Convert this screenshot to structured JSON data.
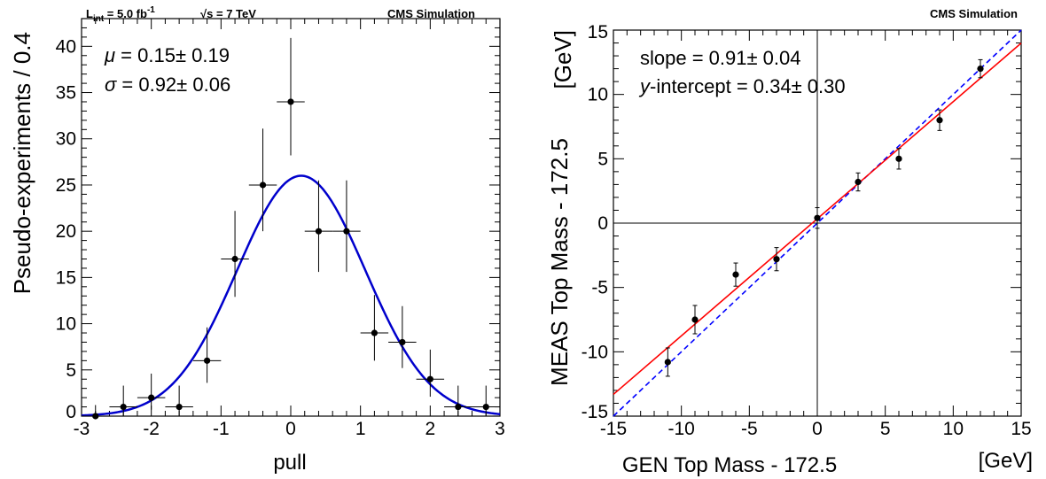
{
  "chart_data": [
    {
      "type": "histogram-with-fit",
      "header": {
        "lumi_prefix": "L",
        "lumi_sub": "int",
        "lumi_value": " = 5.0 fb",
        "lumi_sup": "-1",
        "energy_root": "√s",
        "energy_value": " = 7 TeV",
        "experiment": "CMS  Simulation"
      },
      "xlabel": "pull",
      "ylabel": "Pseudo-experiments / 0.4",
      "xlim": [
        -3,
        3
      ],
      "ylim": [
        0,
        43
      ],
      "xticks": [
        -3,
        -2,
        -1,
        0,
        1,
        2,
        3
      ],
      "yticks": [
        0,
        5,
        10,
        15,
        20,
        25,
        30,
        35,
        40
      ],
      "annotations": [
        {
          "symbol": "μ",
          "text": " = 0.15± 0.19"
        },
        {
          "symbol": "σ",
          "text": " = 0.92± 0.06"
        }
      ],
      "bin_half_width": 0.2,
      "points": [
        {
          "x": -2.8,
          "y": 0,
          "yerr": [
            0,
            1.2
          ]
        },
        {
          "x": -2.4,
          "y": 1,
          "yerr": [
            1,
            2.3
          ]
        },
        {
          "x": -2.0,
          "y": 2,
          "yerr": [
            1.3,
            2.6
          ]
        },
        {
          "x": -1.6,
          "y": 1,
          "yerr": [
            1,
            2.3
          ]
        },
        {
          "x": -1.2,
          "y": 6,
          "yerr": [
            2.4,
            3.6
          ]
        },
        {
          "x": -0.8,
          "y": 17,
          "yerr": [
            4.1,
            5.2
          ]
        },
        {
          "x": -0.4,
          "y": 25,
          "yerr": [
            5.0,
            6.1
          ]
        },
        {
          "x": 0.0,
          "y": 34,
          "yerr": [
            5.8,
            6.9
          ]
        },
        {
          "x": 0.4,
          "y": 20,
          "yerr": [
            4.4,
            5.5
          ]
        },
        {
          "x": 0.8,
          "y": 20,
          "yerr": [
            4.4,
            5.5
          ]
        },
        {
          "x": 1.2,
          "y": 9,
          "yerr": [
            3.0,
            4.1
          ]
        },
        {
          "x": 1.6,
          "y": 8,
          "yerr": [
            2.8,
            3.9
          ]
        },
        {
          "x": 2.0,
          "y": 4,
          "yerr": [
            1.9,
            3.2
          ]
        },
        {
          "x": 2.4,
          "y": 1,
          "yerr": [
            1,
            2.3
          ]
        },
        {
          "x": 2.8,
          "y": 1,
          "yerr": [
            1,
            2.3
          ]
        }
      ],
      "fit": {
        "function": "gaussian",
        "amplitude": 26,
        "mean": 0.15,
        "sigma": 0.92,
        "color": "#0000cc"
      }
    },
    {
      "type": "scatter-with-fit",
      "header": {
        "experiment": "CMS Simulation"
      },
      "xlabel": "GEN Top Mass - 172.5",
      "xunit": "[GeV]",
      "ylabel": "MEAS Top Mass - 172.5",
      "yunit": "[GeV]",
      "xlim": [
        -15,
        15
      ],
      "ylim": [
        -15,
        15
      ],
      "xticks": [
        -15,
        -10,
        -5,
        0,
        5,
        10,
        15
      ],
      "yticks": [
        -15,
        -10,
        -5,
        0,
        5,
        10,
        15
      ],
      "annotations": [
        {
          "italic": "",
          "text": "slope = 0.91± 0.04"
        },
        {
          "italic": "y",
          "text": "-intercept = 0.34± 0.30"
        }
      ],
      "points": [
        {
          "x": -11,
          "y": -10.8,
          "yerr": 1.1
        },
        {
          "x": -9,
          "y": -7.5,
          "yerr": 1.1
        },
        {
          "x": -6,
          "y": -4.0,
          "yerr": 0.9
        },
        {
          "x": -3,
          "y": -2.8,
          "yerr": 0.9
        },
        {
          "x": 0,
          "y": 0.4,
          "yerr": 0.8
        },
        {
          "x": 3,
          "y": 3.2,
          "yerr": 0.7
        },
        {
          "x": 6,
          "y": 5.0,
          "yerr": 0.8
        },
        {
          "x": 9,
          "y": 8.0,
          "yerr": 0.8
        },
        {
          "x": 12,
          "y": 12.0,
          "yerr": 0.7
        }
      ],
      "fit_line": {
        "slope": 0.91,
        "intercept": 0.34,
        "color": "#ff0000"
      },
      "reference_line": {
        "slope": 1,
        "intercept": 0,
        "style": "dashed",
        "color": "#0000ff"
      },
      "axis_lines": {
        "x0": true,
        "y0": true
      }
    }
  ]
}
